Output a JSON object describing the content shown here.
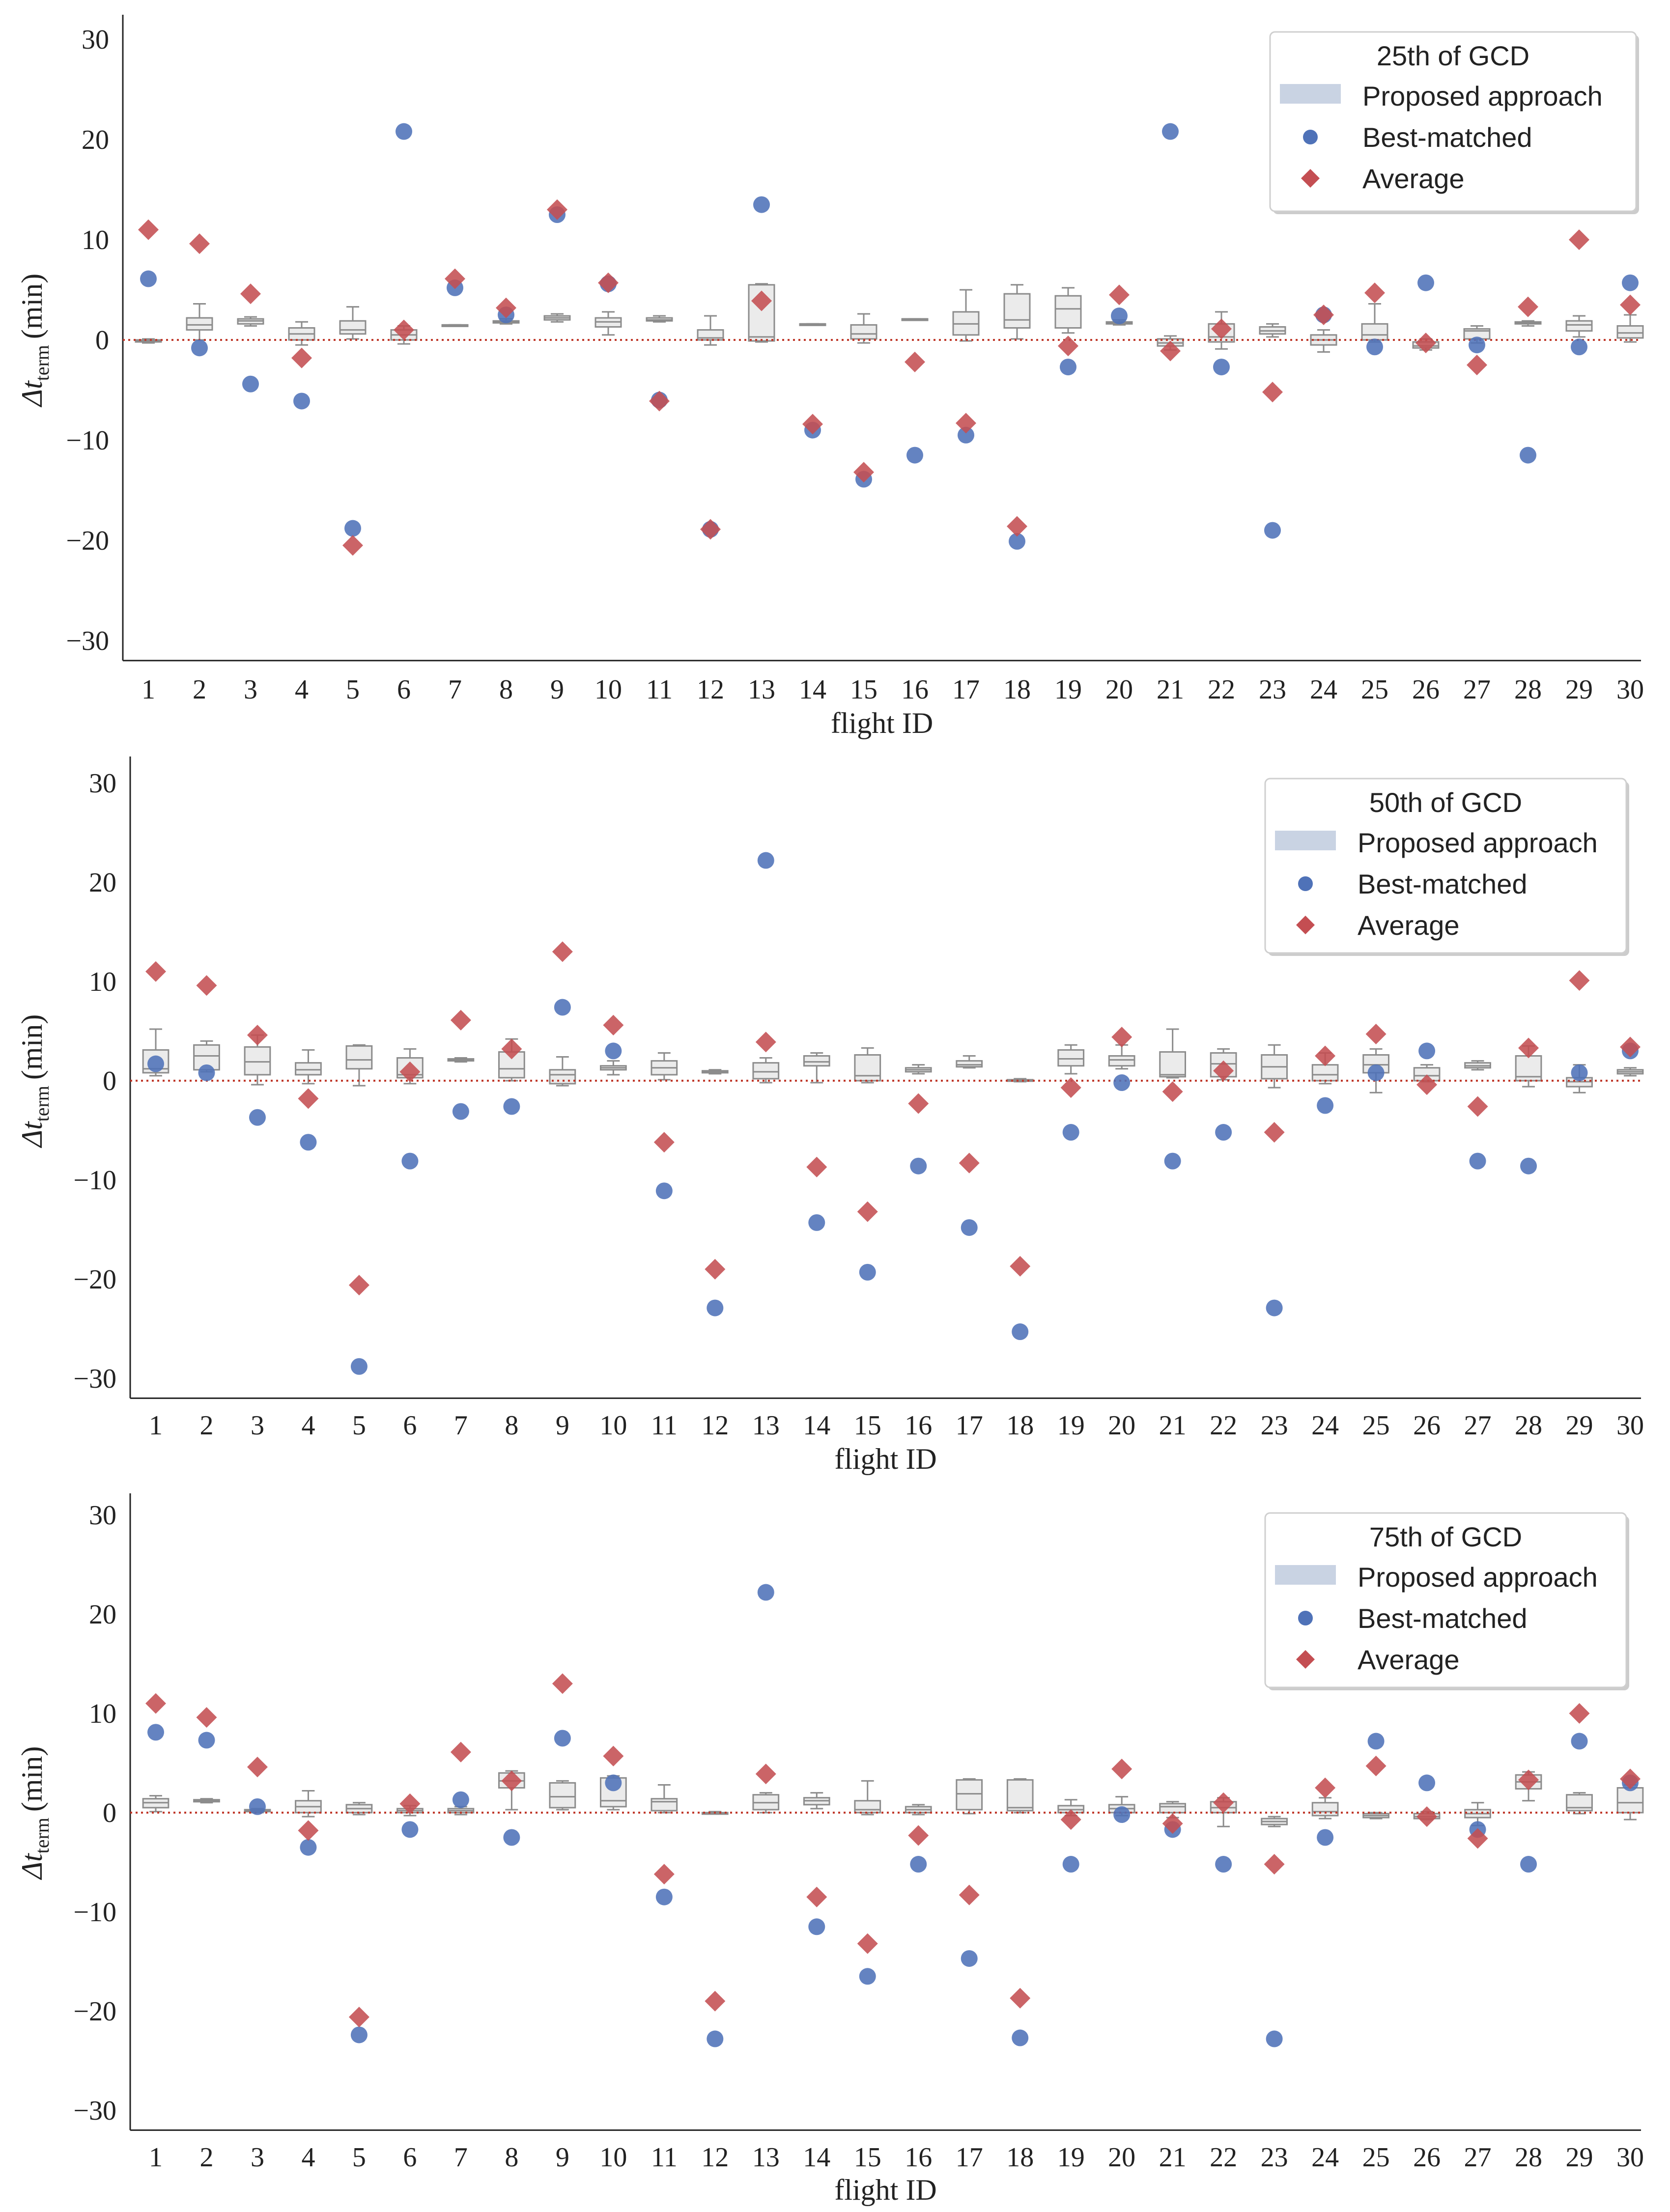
{
  "colors": {
    "best": "#4f72b8",
    "average": "#c44e52",
    "box_fill": "#ebebeb",
    "box_edge": "#8c8c8c",
    "zero_line": "#c0392b",
    "legend_patch": "#c9d3e3"
  },
  "chart_data": [
    {
      "type": "box+scatter",
      "title": "25th of GCD",
      "xlabel": "flight ID",
      "ylabel": "Δt",
      "ylabel_sub": "term",
      "ylabel_unit": "(min)",
      "ylim": [
        -32,
        32
      ],
      "yticks": [
        30,
        20,
        10,
        0,
        -10,
        -20,
        -30
      ],
      "yticklabels": [
        "30",
        "20",
        "10",
        "0",
        "−10",
        "−20",
        "−30"
      ],
      "categories": [
        "1",
        "2",
        "3",
        "4",
        "5",
        "6",
        "7",
        "8",
        "9",
        "10",
        "11",
        "12",
        "13",
        "14",
        "15",
        "16",
        "17",
        "18",
        "19",
        "20",
        "21",
        "22",
        "23",
        "24",
        "25",
        "26",
        "27",
        "28",
        "29",
        "30"
      ],
      "legend": {
        "title": "25th of GCD",
        "entries": [
          "Proposed approach",
          "Best-matched",
          "Average"
        ]
      },
      "best_matched": [
        6.1,
        -0.8,
        -4.4,
        -6.1,
        -18.8,
        20.8,
        5.2,
        2.5,
        12.5,
        5.6,
        -6,
        -18.9,
        13.5,
        -9,
        -13.9,
        -11.5,
        -9.5,
        -20.1,
        -2.7,
        2.4,
        20.8,
        -2.7,
        -19,
        2.5,
        -0.7,
        5.7,
        -0.5,
        -11.5,
        -0.7,
        5.7
      ],
      "average": [
        11,
        9.6,
        4.6,
        -1.8,
        -20.5,
        1,
        6.1,
        3.2,
        13,
        5.7,
        -6.1,
        -18.9,
        3.9,
        -8.4,
        -13.2,
        -2.2,
        -8.3,
        -18.6,
        -0.6,
        4.5,
        -1.1,
        1.1,
        -5.2,
        2.5,
        4.7,
        -0.3,
        -2.5,
        3.3,
        10,
        3.5
      ],
      "boxes": [
        [
          -0.3,
          -0.2,
          -0.1,
          0,
          0.1
        ],
        [
          0,
          1,
          1.5,
          2.2,
          3.6
        ],
        [
          1.4,
          1.6,
          1.9,
          2.1,
          2.3
        ],
        [
          -0.5,
          0,
          0.6,
          1.2,
          1.8
        ],
        [
          0.1,
          0.6,
          1,
          1.9,
          3.3
        ],
        [
          -0.4,
          0,
          0.5,
          1,
          1.4
        ],
        [
          1.5,
          1.5,
          1.5,
          1.5,
          1.5
        ],
        [
          1.6,
          1.7,
          1.8,
          1.9,
          2.1
        ],
        [
          1.8,
          2,
          2.2,
          2.4,
          2.6
        ],
        [
          0.5,
          1.3,
          1.8,
          2.2,
          2.8
        ],
        [
          1.8,
          1.9,
          2,
          2.2,
          2.4
        ],
        [
          -0.5,
          0,
          0.2,
          1,
          2.4
        ],
        [
          -0.2,
          -0.1,
          0.3,
          5.5,
          5.6
        ],
        [
          1.6,
          1.6,
          1.6,
          1.6,
          1.6
        ],
        [
          -0.3,
          0.1,
          0.6,
          1.5,
          2.6
        ],
        [
          2.1,
          2.1,
          2.1,
          2.1,
          2.1
        ],
        [
          -0.1,
          0.5,
          1.6,
          2.8,
          5
        ],
        [
          0.1,
          1.2,
          2,
          4.6,
          5.5
        ],
        [
          0.7,
          1.2,
          3.1,
          4.4,
          5.2
        ],
        [
          1.5,
          1.6,
          1.7,
          1.8,
          2
        ],
        [
          -1,
          -0.6,
          -0.3,
          0.1,
          0.4
        ],
        [
          -0.9,
          -0.2,
          0.3,
          1.6,
          2.8
        ],
        [
          0.3,
          0.6,
          0.9,
          1.3,
          1.6
        ],
        [
          -1.2,
          -0.5,
          0,
          0.5,
          1
        ],
        [
          -0.2,
          0,
          0.5,
          1.6,
          3.6
        ],
        [
          -1,
          -0.8,
          -0.6,
          -0.2,
          0.1
        ],
        [
          -0.3,
          0.1,
          0.9,
          1.1,
          1.4
        ],
        [
          1.4,
          1.6,
          1.7,
          1.8,
          1.9
        ],
        [
          0.3,
          0.9,
          1.5,
          1.9,
          2.4
        ],
        [
          -0.2,
          0.2,
          0.7,
          1.4,
          2.5
        ]
      ]
    },
    {
      "type": "box+scatter",
      "title": "50th of GCD",
      "xlabel": "flight ID",
      "ylabel": "Δt",
      "ylabel_sub": "term",
      "ylabel_unit": "(min)",
      "ylim": [
        -32,
        32
      ],
      "yticks": [
        30,
        20,
        10,
        0,
        -10,
        -20,
        -30
      ],
      "yticklabels": [
        "30",
        "20",
        "10",
        "0",
        "−10",
        "−20",
        "−30"
      ],
      "categories": [
        "1",
        "2",
        "3",
        "4",
        "5",
        "6",
        "7",
        "8",
        "9",
        "10",
        "11",
        "12",
        "13",
        "14",
        "15",
        "16",
        "17",
        "18",
        "19",
        "20",
        "21",
        "22",
        "23",
        "24",
        "25",
        "26",
        "27",
        "28",
        "29",
        "30"
      ],
      "legend": {
        "title": "50th of GCD",
        "entries": [
          "Proposed approach",
          "Best-matched",
          "Average"
        ]
      },
      "best_matched": [
        1.7,
        0.8,
        -3.7,
        -6.2,
        -28.8,
        -8.1,
        -3.1,
        -2.6,
        7.4,
        3,
        -11.1,
        -22.9,
        22.2,
        -14.3,
        -19.3,
        -8.6,
        -14.8,
        -25.3,
        -5.2,
        -0.2,
        -8.1,
        -5.2,
        -22.9,
        -2.5,
        0.8,
        3,
        -8.1,
        -8.6,
        0.8,
        3
      ],
      "average": [
        11,
        9.6,
        4.6,
        -1.8,
        -20.6,
        0.9,
        6.1,
        3.2,
        13,
        5.6,
        -6.2,
        -19,
        3.9,
        -8.7,
        -13.2,
        -2.3,
        -8.3,
        -18.7,
        -0.7,
        4.4,
        -1.1,
        1,
        -5.2,
        2.5,
        4.7,
        -0.4,
        -2.6,
        3.3,
        10.1,
        3.4
      ],
      "boxes": [
        [
          0.5,
          0.8,
          1.2,
          3.1,
          5.2
        ],
        [
          0.9,
          1.1,
          2.5,
          3.6,
          4
        ],
        [
          -0.4,
          0.6,
          1.9,
          3.4,
          4.6
        ],
        [
          -0.3,
          0.6,
          1.1,
          1.8,
          3.1
        ],
        [
          -0.5,
          1.2,
          2.1,
          3.5,
          3.6
        ],
        [
          -0.3,
          0.3,
          0.6,
          2.3,
          3.2
        ],
        [
          1.9,
          2,
          2.1,
          2.2,
          2.3
        ],
        [
          0,
          0.3,
          1.2,
          2.9,
          4.2
        ],
        [
          -0.5,
          -0.3,
          0.6,
          1.1,
          2.4
        ],
        [
          0.6,
          1.1,
          1.3,
          1.5,
          2
        ],
        [
          0.1,
          0.6,
          1.3,
          2,
          2.8
        ],
        [
          0.7,
          0.8,
          0.9,
          1,
          1.1
        ],
        [
          -0.2,
          0.2,
          0.9,
          1.8,
          2.3
        ],
        [
          -0.2,
          1.5,
          1.9,
          2.5,
          2.8
        ],
        [
          -0.2,
          0,
          0.5,
          2.6,
          3.3
        ],
        [
          0.7,
          0.9,
          1.1,
          1.3,
          1.6
        ],
        [
          1.3,
          1.4,
          1.6,
          2,
          2.5
        ],
        [
          -0.1,
          0,
          0,
          0.1,
          0.2
        ],
        [
          0.7,
          1.5,
          2.2,
          3.1,
          3.6
        ],
        [
          1.2,
          1.5,
          2.1,
          2.5,
          3.6
        ],
        [
          0.3,
          0.4,
          0.6,
          2.9,
          5.2
        ],
        [
          0.1,
          0.4,
          1.7,
          2.8,
          3.2
        ],
        [
          -0.7,
          0.2,
          1.4,
          2.6,
          3.6
        ],
        [
          -0.3,
          0,
          0.6,
          1.6,
          2.8
        ],
        [
          -1.2,
          0.8,
          1.6,
          2.6,
          3.2
        ],
        [
          -0.1,
          0,
          0.5,
          1.3,
          1.6
        ],
        [
          1.1,
          1.3,
          1.5,
          1.8,
          2
        ],
        [
          -0.6,
          0,
          0.4,
          2.5,
          3.5
        ],
        [
          -1.2,
          -0.6,
          -0.1,
          0.3,
          1.6
        ],
        [
          0.5,
          0.7,
          0.9,
          1.1,
          1.3
        ]
      ]
    },
    {
      "type": "box+scatter",
      "title": "75th of GCD",
      "xlabel": "flight ID",
      "ylabel": "Δt",
      "ylabel_sub": "term",
      "ylabel_unit": "(min)",
      "ylim": [
        -32,
        32
      ],
      "yticks": [
        30,
        20,
        10,
        0,
        -10,
        -20,
        -30
      ],
      "yticklabels": [
        "30",
        "20",
        "10",
        "0",
        "−10",
        "−20",
        "−30"
      ],
      "categories": [
        "1",
        "2",
        "3",
        "4",
        "5",
        "6",
        "7",
        "8",
        "9",
        "10",
        "11",
        "12",
        "13",
        "14",
        "15",
        "16",
        "17",
        "18",
        "19",
        "20",
        "21",
        "22",
        "23",
        "24",
        "25",
        "26",
        "27",
        "28",
        "29",
        "30"
      ],
      "legend": {
        "title": "75th of GCD",
        "entries": [
          "Proposed approach",
          "Best-matched",
          "Average"
        ]
      },
      "best_matched": [
        8.1,
        7.3,
        0.6,
        -3.5,
        -22.4,
        -1.7,
        1.3,
        -2.5,
        7.5,
        3,
        -8.5,
        -22.8,
        22.2,
        -11.5,
        -16.5,
        -5.2,
        -14.7,
        -22.7,
        -5.2,
        -0.2,
        -1.7,
        -5.2,
        -22.8,
        -2.5,
        7.2,
        3,
        -1.7,
        -5.2,
        7.2,
        3
      ],
      "average": [
        11,
        9.6,
        4.6,
        -1.8,
        -20.6,
        0.9,
        6.1,
        3.2,
        13,
        5.7,
        -6.2,
        -19,
        3.9,
        -8.5,
        -13.2,
        -2.3,
        -8.3,
        -18.7,
        -0.7,
        4.4,
        -1.1,
        1,
        -5.2,
        2.5,
        4.7,
        -0.4,
        -2.6,
        3.3,
        10,
        3.4
      ],
      "boxes": [
        [
          0.1,
          0.5,
          1,
          1.4,
          1.7
        ],
        [
          1,
          1.1,
          1.2,
          1.3,
          1.4
        ],
        [
          0,
          0.1,
          0.2,
          0.3,
          0.4
        ],
        [
          -0.4,
          0,
          0.6,
          1.2,
          2.2
        ],
        [
          -0.2,
          0,
          0.4,
          0.8,
          1
        ],
        [
          -0.3,
          0,
          0.2,
          0.4,
          0.7
        ],
        [
          -0.2,
          0,
          0.2,
          0.4,
          0.6
        ],
        [
          0.3,
          2.5,
          3.2,
          4,
          4.2
        ],
        [
          0.3,
          0.5,
          1.6,
          3,
          3.2
        ],
        [
          0.3,
          0.6,
          1.2,
          3.5,
          3.7
        ],
        [
          0,
          0.2,
          1.1,
          1.4,
          2.8
        ],
        [
          -0.1,
          -0.1,
          0,
          0,
          0.1
        ],
        [
          0,
          0.3,
          1,
          1.8,
          2
        ],
        [
          0.4,
          0.8,
          1.2,
          1.5,
          2
        ],
        [
          -0.2,
          0,
          0.3,
          1.2,
          3.2
        ],
        [
          -0.2,
          0,
          0.3,
          0.6,
          0.8
        ],
        [
          -0.1,
          0.3,
          1.9,
          3.3,
          3.4
        ],
        [
          0,
          0.2,
          0.5,
          3.3,
          3.4
        ],
        [
          -0.3,
          0,
          0.3,
          0.7,
          1.3
        ],
        [
          -0.3,
          0,
          0.4,
          0.8,
          1.6
        ],
        [
          -0.5,
          0,
          0.6,
          0.9,
          1.1
        ],
        [
          -1.4,
          0,
          0.5,
          1.1,
          1.5
        ],
        [
          -1.4,
          -1.2,
          -0.9,
          -0.6,
          -0.4
        ],
        [
          -0.6,
          -0.3,
          0.1,
          1,
          1.5
        ],
        [
          -0.6,
          -0.5,
          -0.3,
          -0.1,
          0
        ],
        [
          -0.7,
          -0.6,
          -0.4,
          -0.1,
          0.1
        ],
        [
          -1.3,
          -0.5,
          -0.1,
          0.3,
          1
        ],
        [
          1.2,
          2.4,
          3.1,
          3.8,
          4.1
        ],
        [
          -0.1,
          0.2,
          0.5,
          1.8,
          2
        ],
        [
          -0.7,
          0,
          1,
          2.5,
          2.8
        ]
      ]
    }
  ]
}
